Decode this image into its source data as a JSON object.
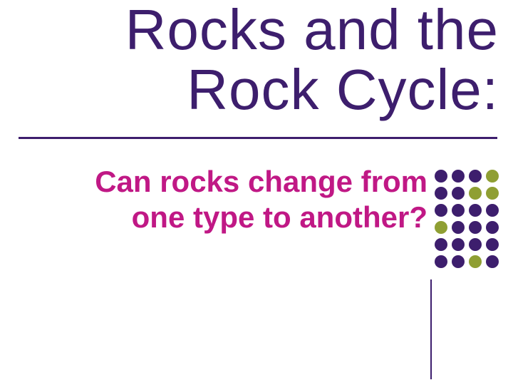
{
  "slide": {
    "title": "Rocks and the Rock Cycle:",
    "subtitle": "Can rocks change from one type to another?",
    "title_color": "#3d1e6d",
    "subtitle_color": "#c01885",
    "rule_color": "#3d1e6d",
    "vline_color": "#3d1e6d",
    "background_color": "#ffffff",
    "title_fontsize": 80,
    "subtitle_fontsize": 42,
    "dot_grid": {
      "rows": 6,
      "cols": 4,
      "dot_size": 18,
      "cell_size": 22
    },
    "dot_colors": [
      "#3d1e6d",
      "#3d1e6d",
      "#3d1e6d",
      "#8f9f33",
      "#3d1e6d",
      "#3d1e6d",
      "#8f9f33",
      "#8f9f33",
      "#3d1e6d",
      "#3d1e6d",
      "#3d1e6d",
      "#3d1e6d",
      "#8f9f33",
      "#3d1e6d",
      "#3d1e6d",
      "#3d1e6d",
      "#3d1e6d",
      "#3d1e6d",
      "#3d1e6d",
      "#3d1e6d",
      "#3d1e6d",
      "#3d1e6d",
      "#8f9f33",
      "#3d1e6d"
    ]
  }
}
